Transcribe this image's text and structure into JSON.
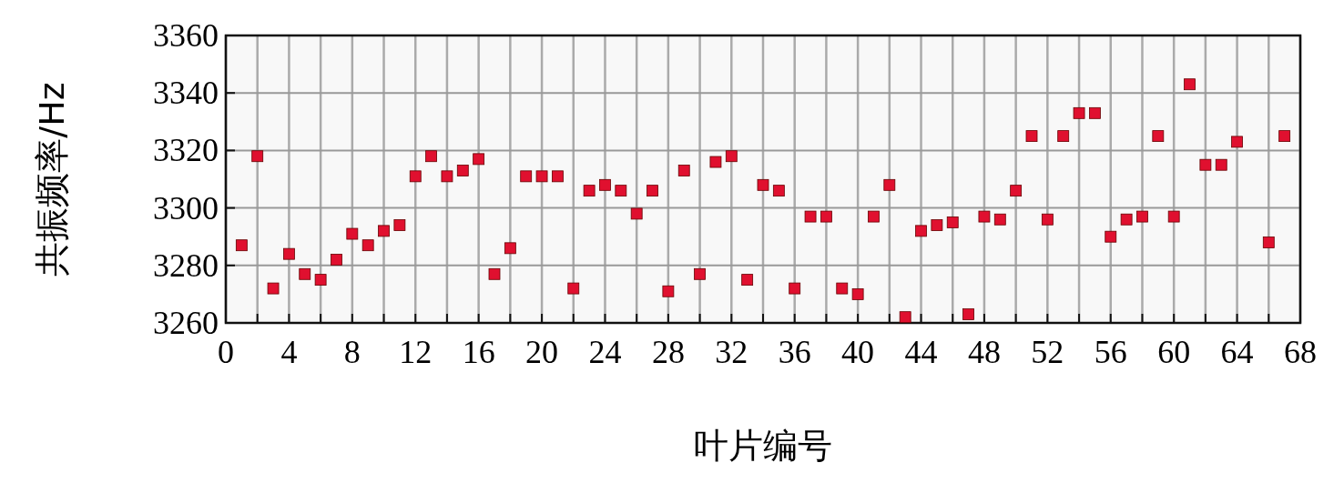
{
  "chart_data": {
    "type": "scatter",
    "xlabel": "叶片编号",
    "ylabel": "共振频率/Hz",
    "x": [
      1,
      2,
      3,
      4,
      5,
      6,
      7,
      8,
      9,
      10,
      11,
      12,
      13,
      14,
      15,
      16,
      17,
      18,
      19,
      20,
      21,
      22,
      23,
      24,
      25,
      26,
      27,
      28,
      29,
      30,
      31,
      32,
      33,
      34,
      35,
      36,
      37,
      38,
      39,
      40,
      41,
      42,
      43,
      44,
      45,
      46,
      47,
      48,
      49,
      50,
      51,
      52,
      53,
      54,
      55,
      56,
      57,
      58,
      59,
      60,
      61,
      62,
      63,
      64,
      66,
      67
    ],
    "values": [
      3287,
      3318,
      3272,
      3284,
      3277,
      3275,
      3282,
      3291,
      3287,
      3292,
      3294,
      3311,
      3318,
      3311,
      3313,
      3317,
      3277,
      3286,
      3311,
      3311,
      3311,
      3272,
      3306,
      3308,
      3306,
      3298,
      3306,
      3271,
      3313,
      3277,
      3316,
      3318,
      3275,
      3308,
      3306,
      3272,
      3297,
      3297,
      3272,
      3270,
      3297,
      3308,
      3262,
      3292,
      3294,
      3295,
      3263,
      3297,
      3296,
      3306,
      3325,
      3296,
      3325,
      3333,
      3333,
      3290,
      3296,
      3297,
      3325,
      3297,
      3343,
      3315,
      3315,
      3323,
      3288,
      3325
    ],
    "color": "#e0102f",
    "marker": "square",
    "grid": true,
    "xlim": [
      0,
      68
    ],
    "ylim": [
      3260,
      3360
    ],
    "xticks": [
      0,
      {
        "value": 2,
        "label": null
      },
      4,
      {
        "value": 6,
        "label": null
      },
      8,
      {
        "value": 10,
        "label": null
      },
      12,
      {
        "value": 14,
        "label": null
      },
      16,
      {
        "value": 18,
        "label": null
      },
      20,
      {
        "value": 22,
        "label": null
      },
      24,
      {
        "value": 26,
        "label": null
      },
      28,
      {
        "value": 30,
        "label": null
      },
      32,
      {
        "value": 34,
        "label": null
      },
      36,
      {
        "value": 38,
        "label": null
      },
      40,
      {
        "value": 42,
        "label": null
      },
      44,
      {
        "value": 46,
        "label": null
      },
      48,
      {
        "value": 50,
        "label": null
      },
      52,
      {
        "value": 54,
        "label": null
      },
      56,
      {
        "value": 58,
        "label": null
      },
      60,
      {
        "value": 62,
        "label": null
      },
      64,
      {
        "value": 66,
        "label": null
      },
      68
    ],
    "yticks": [
      3260,
      3280,
      3300,
      3320,
      3340,
      3360
    ]
  }
}
